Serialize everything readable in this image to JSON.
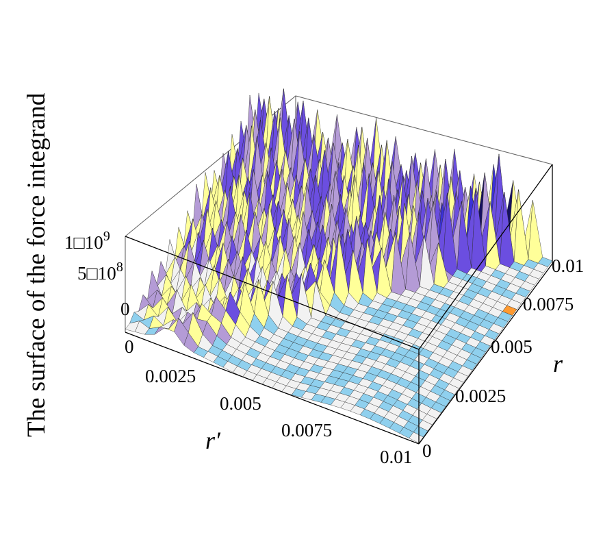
{
  "chart_data": {
    "type": "surface3d",
    "zlabel": "The surface of the force integrand",
    "xlabel": "r′",
    "ylabel": "r",
    "x_ticks": [
      "0",
      "0.0025",
      "0.005",
      "0.0075",
      "0.01"
    ],
    "y_ticks": [
      "0",
      "0.0025",
      "0.005",
      "0.0075",
      "0.01"
    ],
    "z_ticks": [
      "0",
      "5□10",
      "1□10"
    ],
    "z_tick_exponents": [
      "",
      "8",
      "9"
    ],
    "xlim": [
      0,
      0.01
    ],
    "ylim": [
      0,
      0.01
    ],
    "zlim": [
      0,
      1200000000
    ],
    "z_tick_values": [
      0,
      500000000,
      1000000000
    ],
    "grid": false,
    "surface": {
      "description_free": true,
      "grid_points": 30,
      "ridge_value": 1000000000,
      "colormap": [
        "#8fd0ee",
        "#f2f2f2",
        "#ffff99",
        "#b49bd6",
        "#6b4ee0",
        "#3a31d8",
        "#151060",
        "#ff9a30"
      ]
    }
  }
}
